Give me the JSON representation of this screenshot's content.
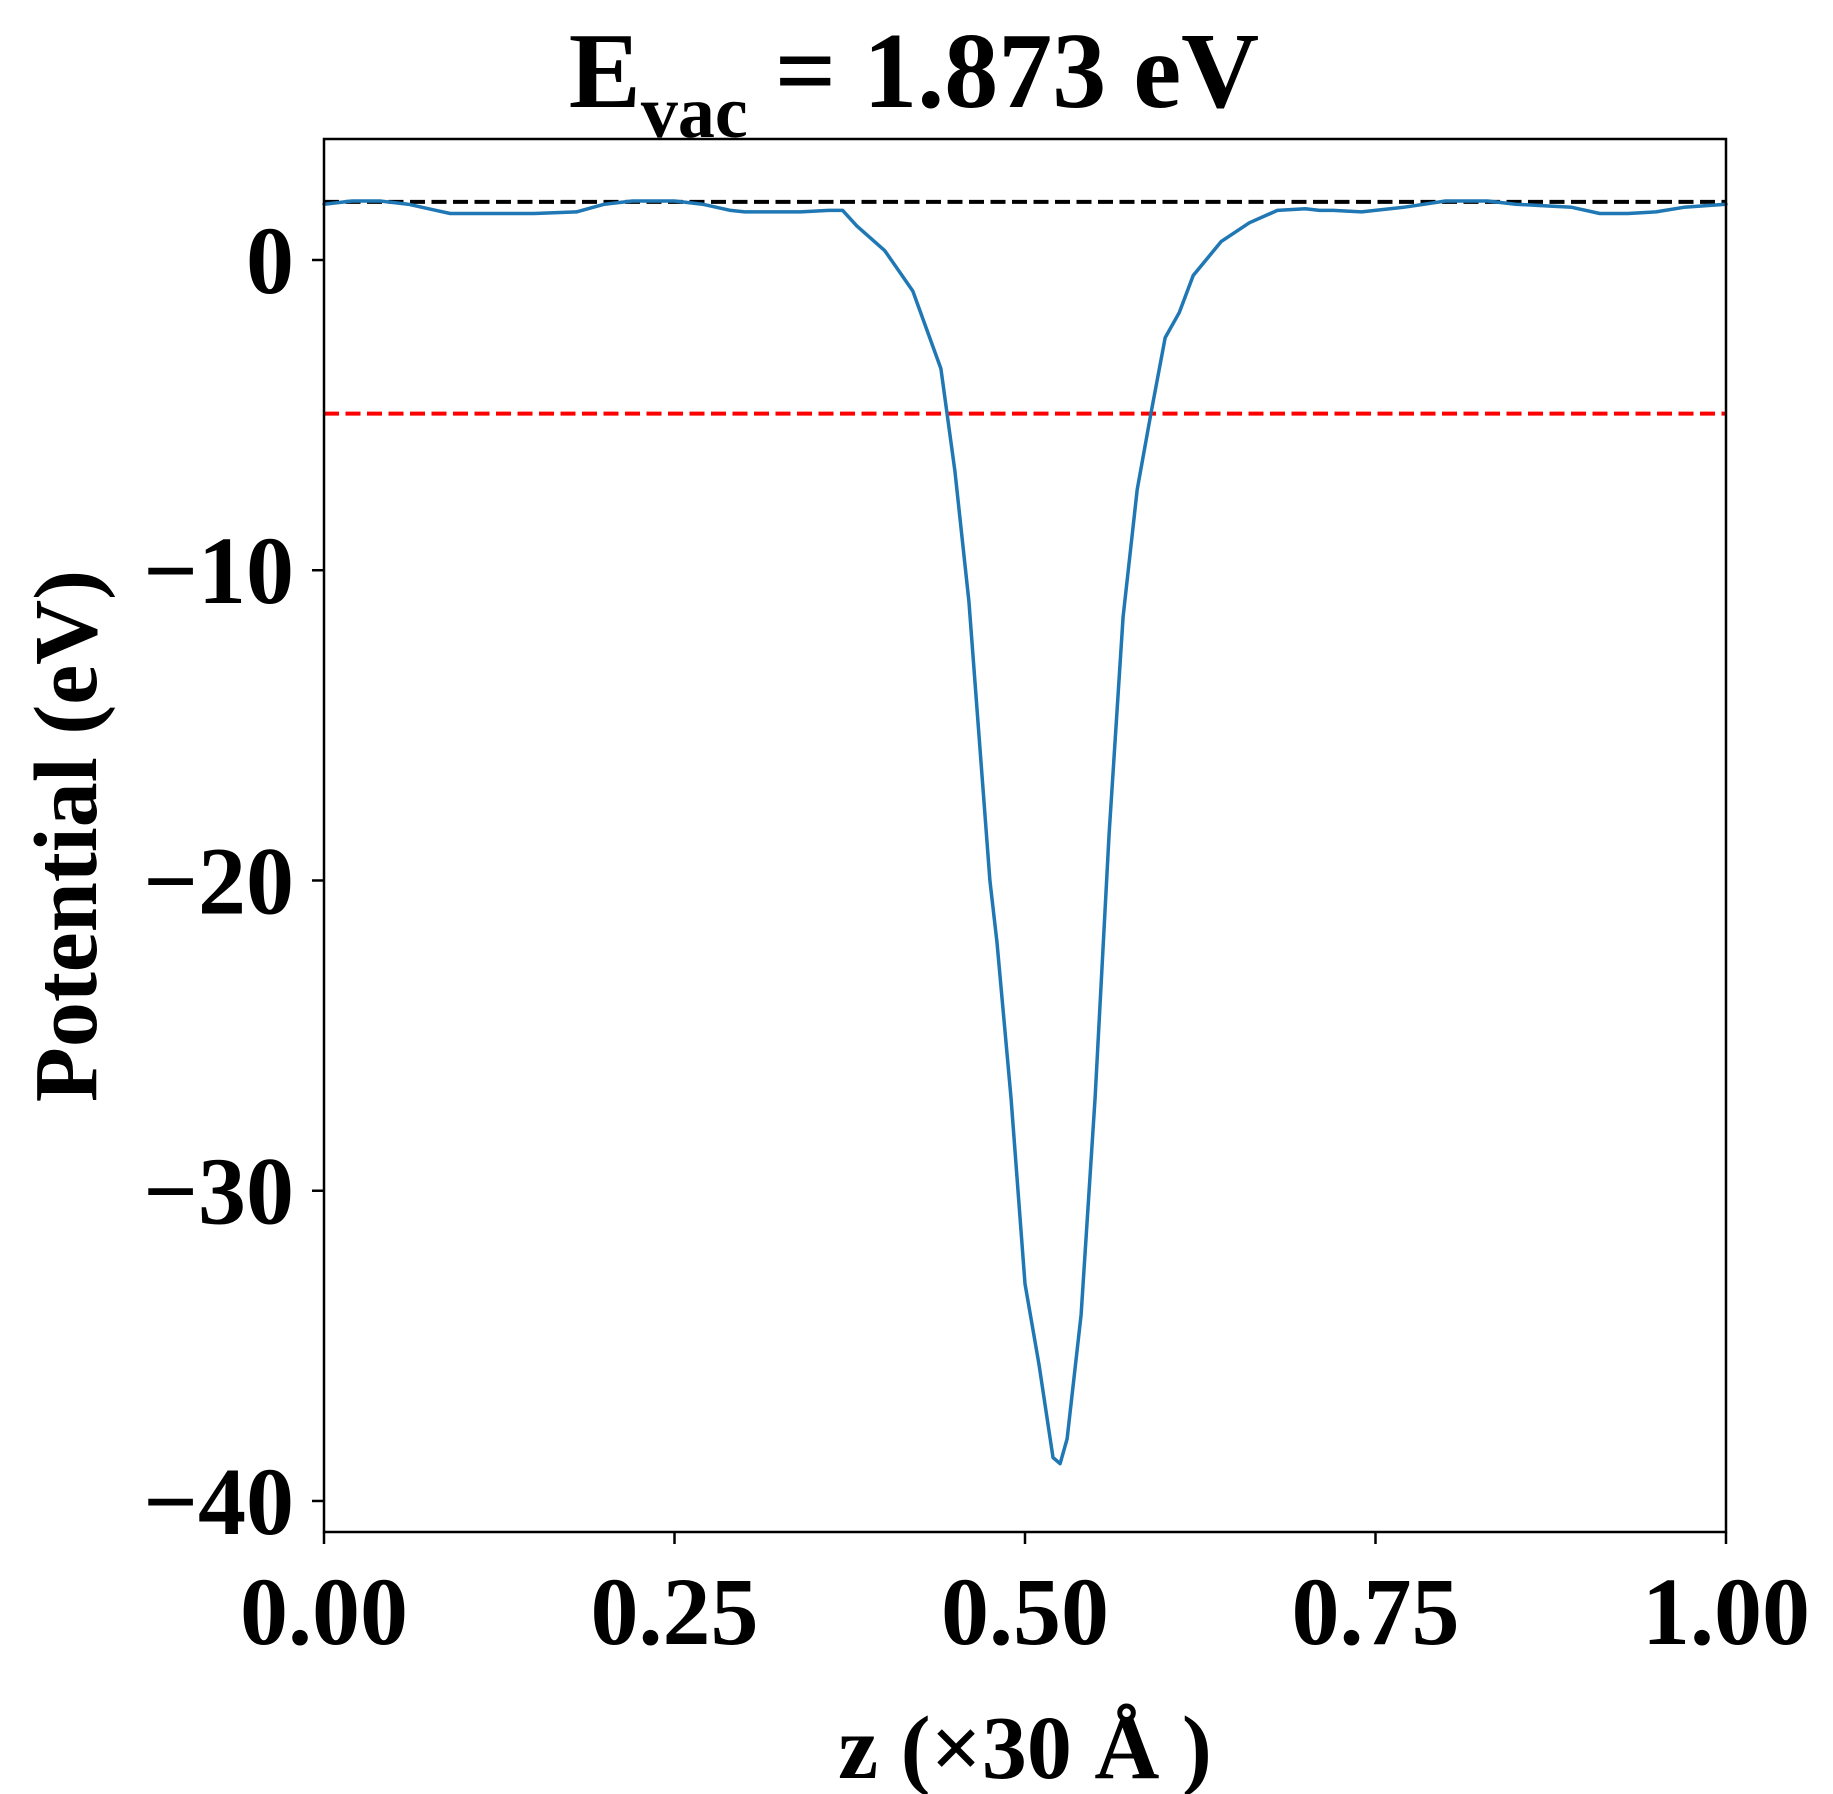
{
  "chart_data": {
    "type": "line",
    "title": {
      "prefix": "E",
      "subscript": "vac",
      "suffix": " = 1.873 eV"
    },
    "xlabel": "z (×30 Å )",
    "ylabel": "Potential (eV)",
    "xlim": [
      0.0,
      1.0
    ],
    "ylim": [
      -41.0,
      3.9
    ],
    "xticks": [
      0.0,
      0.25,
      0.5,
      0.75,
      1.0
    ],
    "xtick_labels": [
      "0.00",
      "0.25",
      "0.50",
      "0.75",
      "1.00"
    ],
    "yticks": [
      0,
      -10,
      -20,
      -30,
      -40
    ],
    "ytick_labels": [
      "0",
      "−10",
      "−20",
      "−30",
      "−40"
    ],
    "grid": false,
    "reference_lines": [
      {
        "y": 1.873,
        "color": "#000000",
        "style": "dashed"
      },
      {
        "y": -4.95,
        "color": "#ff0000",
        "style": "dashed"
      }
    ],
    "series": [
      {
        "color": "#1f77b4",
        "x": [
          0.0,
          0.02,
          0.04,
          0.06,
          0.08,
          0.09,
          0.1,
          0.12,
          0.15,
          0.18,
          0.2,
          0.22,
          0.25,
          0.27,
          0.29,
          0.3,
          0.32,
          0.34,
          0.36,
          0.37,
          0.38,
          0.4,
          0.42,
          0.44,
          0.45,
          0.46,
          0.47,
          0.475,
          0.48,
          0.49,
          0.5,
          0.51,
          0.52,
          0.525,
          0.53,
          0.535,
          0.54,
          0.55,
          0.56,
          0.57,
          0.58,
          0.59,
          0.6,
          0.61,
          0.62,
          0.64,
          0.66,
          0.68,
          0.7,
          0.71,
          0.72,
          0.74,
          0.77,
          0.8,
          0.83,
          0.85,
          0.87,
          0.89,
          0.91,
          0.93,
          0.95,
          0.97,
          1.0
        ],
        "y": [
          1.8,
          1.9,
          1.9,
          1.8,
          1.6,
          1.5,
          1.5,
          1.5,
          1.5,
          1.55,
          1.8,
          1.9,
          1.9,
          1.8,
          1.6,
          1.55,
          1.55,
          1.55,
          1.6,
          1.6,
          1.1,
          0.3,
          -1.0,
          -3.5,
          -6.8,
          -11.0,
          -17.0,
          -20.0,
          -22.0,
          -27.0,
          -33.0,
          -35.6,
          -38.6,
          -38.8,
          -38.0,
          -36.0,
          -34.0,
          -27.0,
          -18.5,
          -11.5,
          -7.4,
          -4.9,
          -2.5,
          -1.7,
          -0.5,
          0.6,
          1.2,
          1.6,
          1.65,
          1.6,
          1.6,
          1.55,
          1.7,
          1.9,
          1.9,
          1.8,
          1.75,
          1.7,
          1.5,
          1.5,
          1.55,
          1.7,
          1.8
        ]
      }
    ]
  }
}
